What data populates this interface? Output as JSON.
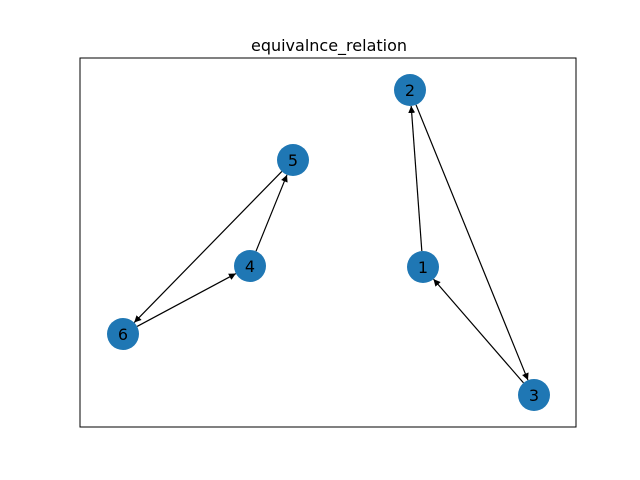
{
  "figure": {
    "title": "equivalnce_relation"
  },
  "graph": {
    "directed": true,
    "node_color": "#1f77b4",
    "edge_color": "#000000",
    "nodes": [
      {
        "id": "1",
        "label": "1"
      },
      {
        "id": "2",
        "label": "2"
      },
      {
        "id": "3",
        "label": "3"
      },
      {
        "id": "4",
        "label": "4"
      },
      {
        "id": "5",
        "label": "5"
      },
      {
        "id": "6",
        "label": "6"
      }
    ],
    "edges": [
      {
        "from": "1",
        "to": "2"
      },
      {
        "from": "2",
        "to": "3"
      },
      {
        "from": "3",
        "to": "1"
      },
      {
        "from": "4",
        "to": "5"
      },
      {
        "from": "5",
        "to": "6"
      },
      {
        "from": "6",
        "to": "4"
      }
    ]
  }
}
